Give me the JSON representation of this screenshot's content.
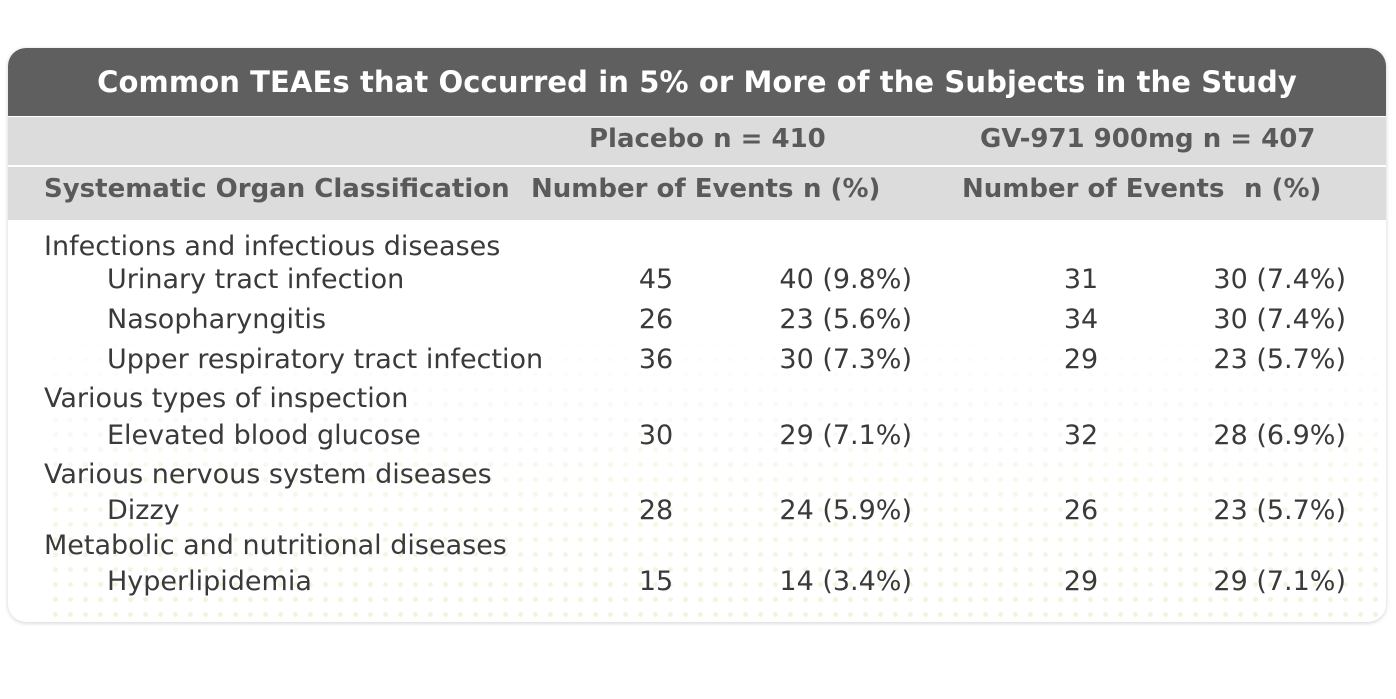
{
  "title": "Common TEAEs that Occurred in 5% or More of the Subjects in the Study",
  "groups": {
    "placebo": "Placebo   n = 410",
    "drug": "GV-971 900mg   n = 407"
  },
  "columns": {
    "soc": "Systematic Organ Classification",
    "placebo_events": "Number of Events",
    "placebo_n": "n (%)",
    "drug_events": "Number of Events",
    "drug_n": "n (%)"
  },
  "rows": [
    {
      "kind": "category",
      "label": "Infections and infectious diseases"
    },
    {
      "kind": "item",
      "label": "Urinary tract infection",
      "placebo_events": "45",
      "placebo_n": "40 (9.8%)",
      "drug_events": "31",
      "drug_n": "30 (7.4%)"
    },
    {
      "kind": "item",
      "label": "Nasopharyngitis",
      "placebo_events": "26",
      "placebo_n": "23 (5.6%)",
      "drug_events": "34",
      "drug_n": "30 (7.4%)"
    },
    {
      "kind": "item",
      "label": "Upper respiratory tract infection",
      "placebo_events": "36",
      "placebo_n": "30 (7.3%)",
      "drug_events": "29",
      "drug_n": "23 (5.7%)"
    },
    {
      "kind": "category",
      "label": "Various types of inspection"
    },
    {
      "kind": "item",
      "label": "Elevated blood glucose",
      "placebo_events": "30",
      "placebo_n": "29 (7.1%)",
      "drug_events": "32",
      "drug_n": "28 (6.9%)"
    },
    {
      "kind": "category",
      "label": "Various nervous system diseases"
    },
    {
      "kind": "item",
      "label": "Dizzy",
      "placebo_events": "28",
      "placebo_n": "24 (5.9%)",
      "drug_events": "26",
      "drug_n": "23 (5.7%)"
    },
    {
      "kind": "category",
      "label": "Metabolic and nutritional diseases"
    },
    {
      "kind": "item",
      "label": "Hyperlipidemia",
      "placebo_events": "15",
      "placebo_n": "14 (3.4%)",
      "drug_events": "29",
      "drug_n": "29 (7.1%)"
    }
  ],
  "colors": {
    "title_bg": "#5f5f5f",
    "header_bg": "#dcdcdc",
    "dot_pattern": "#eef4dc"
  }
}
